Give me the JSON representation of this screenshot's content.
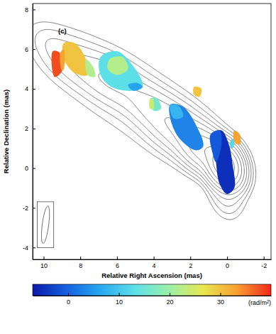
{
  "chart_data": {
    "type": "contour_map",
    "x_label": "Relative Right Ascension (mas)",
    "y_label": "Relative Declination (mas)",
    "panel_label": "(c)",
    "xlim": [
      10.6,
      -2.4
    ],
    "xticks": [
      10,
      8,
      6,
      4,
      2,
      0,
      -2
    ],
    "ylim": [
      -4.6,
      8.3
    ],
    "yticks": [
      -4,
      -2,
      0,
      2,
      4,
      6,
      8
    ],
    "contour_levels": [
      0.2,
      0.4,
      0.8,
      1.6,
      3.2,
      6.4,
      12.8,
      25.6,
      51.2
    ],
    "components": [
      {
        "x": 0.1,
        "y": 0.1,
        "peak": 100,
        "major": 0.55,
        "minor": 0.42,
        "pa": 30
      },
      {
        "x": 0.0,
        "y": -1.0,
        "peak": 1.5,
        "major": 0.8,
        "minor": 0.5,
        "pa": 10
      },
      {
        "x": 1.2,
        "y": 0.9,
        "peak": 20,
        "major": 0.8,
        "minor": 0.5,
        "pa": 55
      },
      {
        "x": 2.7,
        "y": 2.0,
        "peak": 6,
        "major": 1.1,
        "minor": 0.6,
        "pa": 58
      },
      {
        "x": 4.2,
        "y": 3.1,
        "peak": 2.5,
        "major": 0.9,
        "minor": 0.55,
        "pa": 60
      },
      {
        "x": 6.2,
        "y": 4.3,
        "peak": 3,
        "major": 1.2,
        "minor": 0.6,
        "pa": 62
      },
      {
        "x": 8.3,
        "y": 5.3,
        "peak": 1.2,
        "major": 1.1,
        "minor": 0.6,
        "pa": 62
      },
      {
        "x": 4.8,
        "y": 3.3,
        "peak": 0.45,
        "major": 4.3,
        "minor": 1.3,
        "pa": 58
      },
      {
        "x": 9.6,
        "y": 6.3,
        "peak": 0.35,
        "major": 0.7,
        "minor": 0.45,
        "pa": 60
      }
    ],
    "rm_regions": [
      {
        "rm": -5,
        "points": [
          [
            0.7,
            1.8
          ],
          [
            0.3,
            1.9
          ],
          [
            -0.1,
            1.2
          ],
          [
            -0.3,
            0.2
          ],
          [
            -0.4,
            -1.0
          ],
          [
            0.0,
            -1.3
          ],
          [
            0.4,
            -0.8
          ],
          [
            0.6,
            0.3
          ]
        ]
      },
      {
        "rm": -1,
        "points": [
          [
            0.4,
            1.9
          ],
          [
            0.9,
            1.7
          ],
          [
            0.8,
            0.8
          ],
          [
            0.6,
            0.3
          ],
          [
            0.3,
            1.2
          ]
        ]
      },
      {
        "rm": 33,
        "points": [
          [
            -0.4,
            1.9
          ],
          [
            -0.7,
            1.7
          ],
          [
            -0.7,
            1.2
          ],
          [
            -0.4,
            1.3
          ]
        ]
      },
      {
        "rm": 12,
        "points": [
          [
            -0.3,
            1.5
          ],
          [
            -0.4,
            1.3
          ],
          [
            -0.3,
            1.0
          ],
          [
            -0.15,
            1.2
          ]
        ]
      },
      {
        "rm": 3,
        "points": [
          [
            3.1,
            3.2
          ],
          [
            2.4,
            3.1
          ],
          [
            1.6,
            2.0
          ],
          [
            1.3,
            1.1
          ],
          [
            1.7,
            0.9
          ],
          [
            2.5,
            1.4
          ],
          [
            3.0,
            2.2
          ]
        ]
      },
      {
        "rm": 8,
        "points": [
          [
            3.1,
            3.2
          ],
          [
            2.6,
            3.1
          ],
          [
            2.4,
            2.6
          ],
          [
            2.9,
            2.5
          ]
        ]
      },
      {
        "rm": 16,
        "points": [
          [
            4.2,
            3.5
          ],
          [
            3.8,
            3.5
          ],
          [
            3.6,
            3.0
          ],
          [
            4.0,
            2.9
          ]
        ]
      },
      {
        "rm": 24,
        "points": [
          [
            4.2,
            3.5
          ],
          [
            4.05,
            3.5
          ],
          [
            4.0,
            3.0
          ],
          [
            4.2,
            3.0
          ]
        ]
      },
      {
        "rm": 30,
        "points": [
          [
            1.8,
            4.1
          ],
          [
            1.4,
            4.0
          ],
          [
            1.5,
            3.6
          ],
          [
            1.8,
            3.7
          ]
        ]
      },
      {
        "rm": 13,
        "points": [
          [
            6.9,
            5.6
          ],
          [
            6.0,
            5.9
          ],
          [
            5.0,
            5.0
          ],
          [
            4.6,
            4.1
          ],
          [
            5.2,
            3.9
          ],
          [
            6.3,
            4.1
          ],
          [
            6.9,
            4.7
          ]
        ]
      },
      {
        "rm": 22,
        "points": [
          [
            6.4,
            5.5
          ],
          [
            5.7,
            5.6
          ],
          [
            5.4,
            5.0
          ],
          [
            6.0,
            4.7
          ],
          [
            6.5,
            5.0
          ]
        ]
      },
      {
        "rm": 6,
        "points": [
          [
            4.9,
            4.3
          ],
          [
            4.6,
            4.1
          ],
          [
            5.1,
            3.9
          ],
          [
            5.4,
            4.2
          ]
        ]
      },
      {
        "rm": 30,
        "points": [
          [
            8.9,
            6.3
          ],
          [
            8.3,
            6.3
          ],
          [
            7.7,
            5.5
          ],
          [
            7.6,
            4.7
          ],
          [
            8.3,
            4.8
          ],
          [
            8.9,
            5.5
          ]
        ]
      },
      {
        "rm": 22,
        "points": [
          [
            7.6,
            4.7
          ],
          [
            7.7,
            5.5
          ],
          [
            7.3,
            5.1
          ],
          [
            7.2,
            4.6
          ]
        ]
      },
      {
        "rm": 38,
        "points": [
          [
            9.5,
            5.9
          ],
          [
            9.1,
            5.8
          ],
          [
            9.0,
            4.9
          ],
          [
            9.4,
            4.6
          ]
        ]
      },
      {
        "rm": 33,
        "points": [
          [
            9.1,
            5.8
          ],
          [
            8.9,
            6.0
          ],
          [
            8.9,
            5.0
          ],
          [
            9.0,
            4.9
          ]
        ]
      }
    ],
    "beam": {
      "x": 9.9,
      "y": -2.85,
      "major": 1.9,
      "minor": 0.35,
      "pa": -8
    },
    "colorbar": {
      "range": [
        -7,
        40
      ],
      "ticks": [
        0,
        10,
        20,
        30
      ],
      "label": "(rad/m²)"
    }
  }
}
